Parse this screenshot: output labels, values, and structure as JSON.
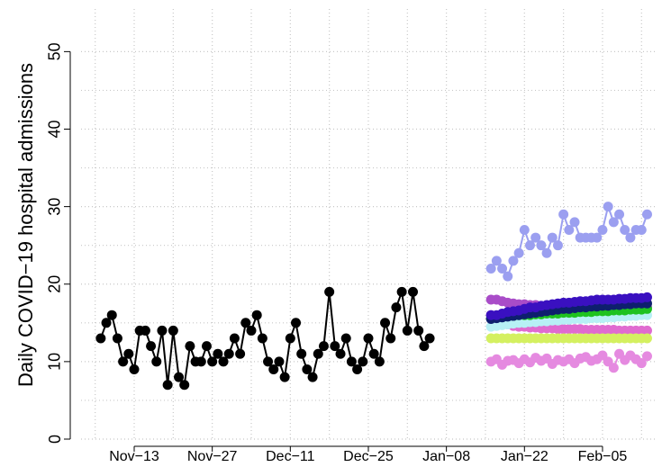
{
  "chart_data": {
    "type": "line",
    "y_label": "Daily COVID−19 hospital admissions",
    "ylim": [
      0,
      55.5
    ],
    "yticks": [
      0,
      10,
      20,
      30,
      40,
      50
    ],
    "xticks": [
      "Nov−13",
      "Nov−27",
      "Dec−11",
      "Dec−25",
      "Jan−08",
      "Jan−22",
      "Feb−05"
    ],
    "grid": true,
    "series": [
      {
        "color": "#000000",
        "x": [
          "Nov-07",
          "Nov-08",
          "Nov-09",
          "Nov-10",
          "Nov-11",
          "Nov-12",
          "Nov-13",
          "Nov-14",
          "Nov-15",
          "Nov-16",
          "Nov-17",
          "Nov-18",
          "Nov-19",
          "Nov-20",
          "Nov-21",
          "Nov-22",
          "Nov-23",
          "Nov-24",
          "Nov-25",
          "Nov-26",
          "Nov-27",
          "Nov-28",
          "Nov-29",
          "Nov-30",
          "Dec-01",
          "Dec-02",
          "Dec-03",
          "Dec-04",
          "Dec-05",
          "Dec-06",
          "Dec-07",
          "Dec-08",
          "Dec-09",
          "Dec-10",
          "Dec-11",
          "Dec-12",
          "Dec-13",
          "Dec-14",
          "Dec-15",
          "Dec-16",
          "Dec-17",
          "Dec-18",
          "Dec-19",
          "Dec-20",
          "Dec-21",
          "Dec-22",
          "Dec-23",
          "Dec-24",
          "Dec-25",
          "Dec-26",
          "Dec-27",
          "Dec-28",
          "Dec-29",
          "Dec-30",
          "Dec-31",
          "Jan-01",
          "Jan-02",
          "Jan-03",
          "Jan-04",
          "Jan-05"
        ],
        "values": [
          13,
          15,
          16,
          13,
          10,
          11,
          9,
          14,
          14,
          12,
          10,
          14,
          7,
          14,
          8,
          7,
          12,
          10,
          10,
          12,
          10,
          11,
          10,
          11,
          13,
          11,
          15,
          14,
          16,
          13,
          10,
          9,
          10,
          8,
          13,
          15,
          11,
          9,
          8,
          11,
          12,
          19,
          12,
          11,
          13,
          10,
          9,
          10,
          13,
          11,
          10,
          15,
          13,
          17,
          19,
          14,
          19,
          14,
          12,
          13
        ]
      },
      {
        "color": "#9b9ff0",
        "x": [
          "Jan-16",
          "Jan-17",
          "Jan-18",
          "Jan-19",
          "Jan-20",
          "Jan-21",
          "Jan-22",
          "Jan-23",
          "Jan-24",
          "Jan-25",
          "Jan-26",
          "Jan-27",
          "Jan-28",
          "Jan-29",
          "Jan-30",
          "Jan-31",
          "Feb-01",
          "Feb-02",
          "Feb-03",
          "Feb-04",
          "Feb-05",
          "Feb-06",
          "Feb-07",
          "Feb-08",
          "Feb-09",
          "Feb-10",
          "Feb-11",
          "Feb-12",
          "Feb-13"
        ],
        "values": [
          22,
          23,
          22,
          21,
          23,
          24,
          27,
          25,
          26,
          25,
          24,
          26,
          25,
          29,
          27,
          28,
          26,
          26,
          26,
          26,
          27,
          30,
          28,
          29,
          27,
          26,
          27,
          27,
          29
        ]
      },
      {
        "color": "#a94cc8",
        "x": [
          "Jan-16",
          "Jan-17",
          "Jan-18",
          "Jan-19",
          "Jan-20",
          "Jan-21",
          "Jan-22",
          "Jan-23",
          "Jan-24",
          "Jan-25",
          "Jan-26",
          "Jan-27",
          "Jan-28",
          "Jan-29",
          "Jan-30",
          "Jan-31",
          "Feb-01",
          "Feb-02",
          "Feb-03",
          "Feb-04",
          "Feb-05",
          "Feb-06",
          "Feb-07",
          "Feb-08",
          "Feb-09",
          "Feb-10",
          "Feb-11",
          "Feb-12",
          "Feb-13"
        ],
        "values": [
          18,
          18,
          17.8,
          17.6,
          17.5,
          17.4,
          17.4,
          17.3,
          17.3,
          17.2,
          17.2,
          17.2,
          17.1,
          17.1,
          17.1,
          17,
          17,
          17,
          17,
          17,
          17,
          17,
          17,
          17,
          17,
          17,
          17,
          17,
          17
        ]
      },
      {
        "color": "#e06bd0",
        "x": [
          "Jan-16",
          "Jan-17",
          "Jan-18",
          "Jan-19",
          "Jan-20",
          "Jan-21",
          "Jan-22",
          "Jan-23",
          "Jan-24",
          "Jan-25",
          "Jan-26",
          "Jan-27",
          "Jan-28",
          "Jan-29",
          "Jan-30",
          "Jan-31",
          "Feb-01",
          "Feb-02",
          "Feb-03",
          "Feb-04",
          "Feb-05",
          "Feb-06",
          "Feb-07",
          "Feb-08",
          "Feb-09",
          "Feb-10",
          "Feb-11",
          "Feb-12",
          "Feb-13"
        ],
        "values": [
          16,
          15.5,
          15,
          14.8,
          14.6,
          14.5,
          14.5,
          14.4,
          14.4,
          14.3,
          14.3,
          14.3,
          14.2,
          14.2,
          14.2,
          14.2,
          14.2,
          14.1,
          14.1,
          14.1,
          14.1,
          14.1,
          14.1,
          14,
          14,
          14,
          14,
          14,
          14
        ]
      },
      {
        "color": "#b7f0f5",
        "x": [
          "Jan-16",
          "Jan-17",
          "Jan-18",
          "Jan-19",
          "Jan-20",
          "Jan-21",
          "Jan-22",
          "Jan-23",
          "Jan-24",
          "Jan-25",
          "Jan-26",
          "Jan-27",
          "Jan-28",
          "Jan-29",
          "Jan-30",
          "Jan-31",
          "Feb-01",
          "Feb-02",
          "Feb-03",
          "Feb-04",
          "Feb-05",
          "Feb-06",
          "Feb-07",
          "Feb-08",
          "Feb-09",
          "Feb-10",
          "Feb-11",
          "Feb-12",
          "Feb-13"
        ],
        "values": [
          14.5,
          14.6,
          14.7,
          14.8,
          14.9,
          15,
          15,
          15.1,
          15.1,
          15.2,
          15.2,
          15.3,
          15.3,
          15.4,
          15.4,
          15.5,
          15.5,
          15.5,
          15.6,
          15.6,
          15.6,
          15.7,
          15.7,
          15.8,
          15.8,
          15.9,
          15.9,
          16,
          16
        ]
      },
      {
        "color": "#1fc21f",
        "x": [
          "Jan-16",
          "Jan-17",
          "Jan-18",
          "Jan-19",
          "Jan-20",
          "Jan-21",
          "Jan-22",
          "Jan-23",
          "Jan-24",
          "Jan-25",
          "Jan-26",
          "Jan-27",
          "Jan-28",
          "Jan-29",
          "Jan-30",
          "Jan-31",
          "Feb-01",
          "Feb-02",
          "Feb-03",
          "Feb-04",
          "Feb-05",
          "Feb-06",
          "Feb-07",
          "Feb-08",
          "Feb-09",
          "Feb-10",
          "Feb-11",
          "Feb-12",
          "Feb-13"
        ],
        "values": [
          15.6,
          15.7,
          15.8,
          15.9,
          15.9,
          16,
          16,
          16,
          16.1,
          16.1,
          16.2,
          16.2,
          16.2,
          16.3,
          16.3,
          16.3,
          16.4,
          16.4,
          16.4,
          16.5,
          16.5,
          16.5,
          16.6,
          16.6,
          16.6,
          16.7,
          16.7,
          16.7,
          16.8
        ]
      },
      {
        "color": "#0e1f6e",
        "x": [
          "Jan-16",
          "Jan-17",
          "Jan-18",
          "Jan-19",
          "Jan-20",
          "Jan-21",
          "Jan-22",
          "Jan-23",
          "Jan-24",
          "Jan-25",
          "Jan-26",
          "Jan-27",
          "Jan-28",
          "Jan-29",
          "Jan-30",
          "Jan-31",
          "Feb-01",
          "Feb-02",
          "Feb-03",
          "Feb-04",
          "Feb-05",
          "Feb-06",
          "Feb-07",
          "Feb-08",
          "Feb-09",
          "Feb-10",
          "Feb-11",
          "Feb-12",
          "Feb-13"
        ],
        "values": [
          15.5,
          15.6,
          15.7,
          15.8,
          15.9,
          16,
          16.1,
          16.2,
          16.3,
          16.4,
          16.5,
          16.6,
          16.7,
          16.8,
          16.8,
          16.9,
          17,
          17,
          17.1,
          17.1,
          17.2,
          17.2,
          17.3,
          17.3,
          17.4,
          17.4,
          17.5,
          17.5,
          17.5
        ]
      },
      {
        "color": "#3a10c0",
        "x": [
          "Jan-16",
          "Jan-17",
          "Jan-18",
          "Jan-19",
          "Jan-20",
          "Jan-21",
          "Jan-22",
          "Jan-23",
          "Jan-24",
          "Jan-25",
          "Jan-26",
          "Jan-27",
          "Jan-28",
          "Jan-29",
          "Jan-30",
          "Jan-31",
          "Feb-01",
          "Feb-02",
          "Feb-03",
          "Feb-04",
          "Feb-05",
          "Feb-06",
          "Feb-07",
          "Feb-08",
          "Feb-09",
          "Feb-10",
          "Feb-11",
          "Feb-12",
          "Feb-13"
        ],
        "values": [
          16,
          16,
          16.2,
          16.4,
          16.5,
          16.6,
          16.8,
          17,
          17,
          17.2,
          17.3,
          17.4,
          17.5,
          17.6,
          17.6,
          17.7,
          17.8,
          17.8,
          17.9,
          18,
          18,
          18,
          18,
          18.1,
          18.1,
          18.2,
          18.2,
          18.2,
          18.3
        ]
      },
      {
        "color": "#d4f060",
        "x": [
          "Jan-16",
          "Jan-17",
          "Jan-18",
          "Jan-19",
          "Jan-20",
          "Jan-21",
          "Jan-22",
          "Jan-23",
          "Jan-24",
          "Jan-25",
          "Jan-26",
          "Jan-27",
          "Jan-28",
          "Jan-29",
          "Jan-30",
          "Jan-31",
          "Feb-01",
          "Feb-02",
          "Feb-03",
          "Feb-04",
          "Feb-05",
          "Feb-06",
          "Feb-07",
          "Feb-08",
          "Feb-09",
          "Feb-10",
          "Feb-11",
          "Feb-12",
          "Feb-13"
        ],
        "values": [
          13,
          13,
          13,
          13,
          13,
          13,
          13,
          13,
          13,
          13,
          13,
          13,
          13,
          13,
          13,
          13,
          13,
          13,
          13,
          13,
          13,
          13,
          13,
          13,
          13,
          13,
          13,
          13,
          13
        ]
      },
      {
        "color": "#e58ae0",
        "x": [
          "Jan-16",
          "Jan-17",
          "Jan-18",
          "Jan-19",
          "Jan-20",
          "Jan-21",
          "Jan-22",
          "Jan-23",
          "Jan-24",
          "Jan-25",
          "Jan-26",
          "Jan-27",
          "Jan-28",
          "Jan-29",
          "Jan-30",
          "Jan-31",
          "Feb-01",
          "Feb-02",
          "Feb-03",
          "Feb-04",
          "Feb-05",
          "Feb-06",
          "Feb-07",
          "Feb-08",
          "Feb-09",
          "Feb-10",
          "Feb-11",
          "Feb-12",
          "Feb-13"
        ],
        "values": [
          10,
          10.3,
          9.6,
          10.1,
          10.2,
          9.8,
          10.3,
          9.9,
          10.5,
          10.1,
          10.4,
          9.7,
          10.2,
          10,
          10.3,
          9.8,
          10.4,
          10.6,
          10.1,
          10.3,
          10.8,
          10,
          9.2,
          11,
          10.2,
          10.8,
          10.3,
          9.8,
          10.7
        ]
      }
    ]
  }
}
